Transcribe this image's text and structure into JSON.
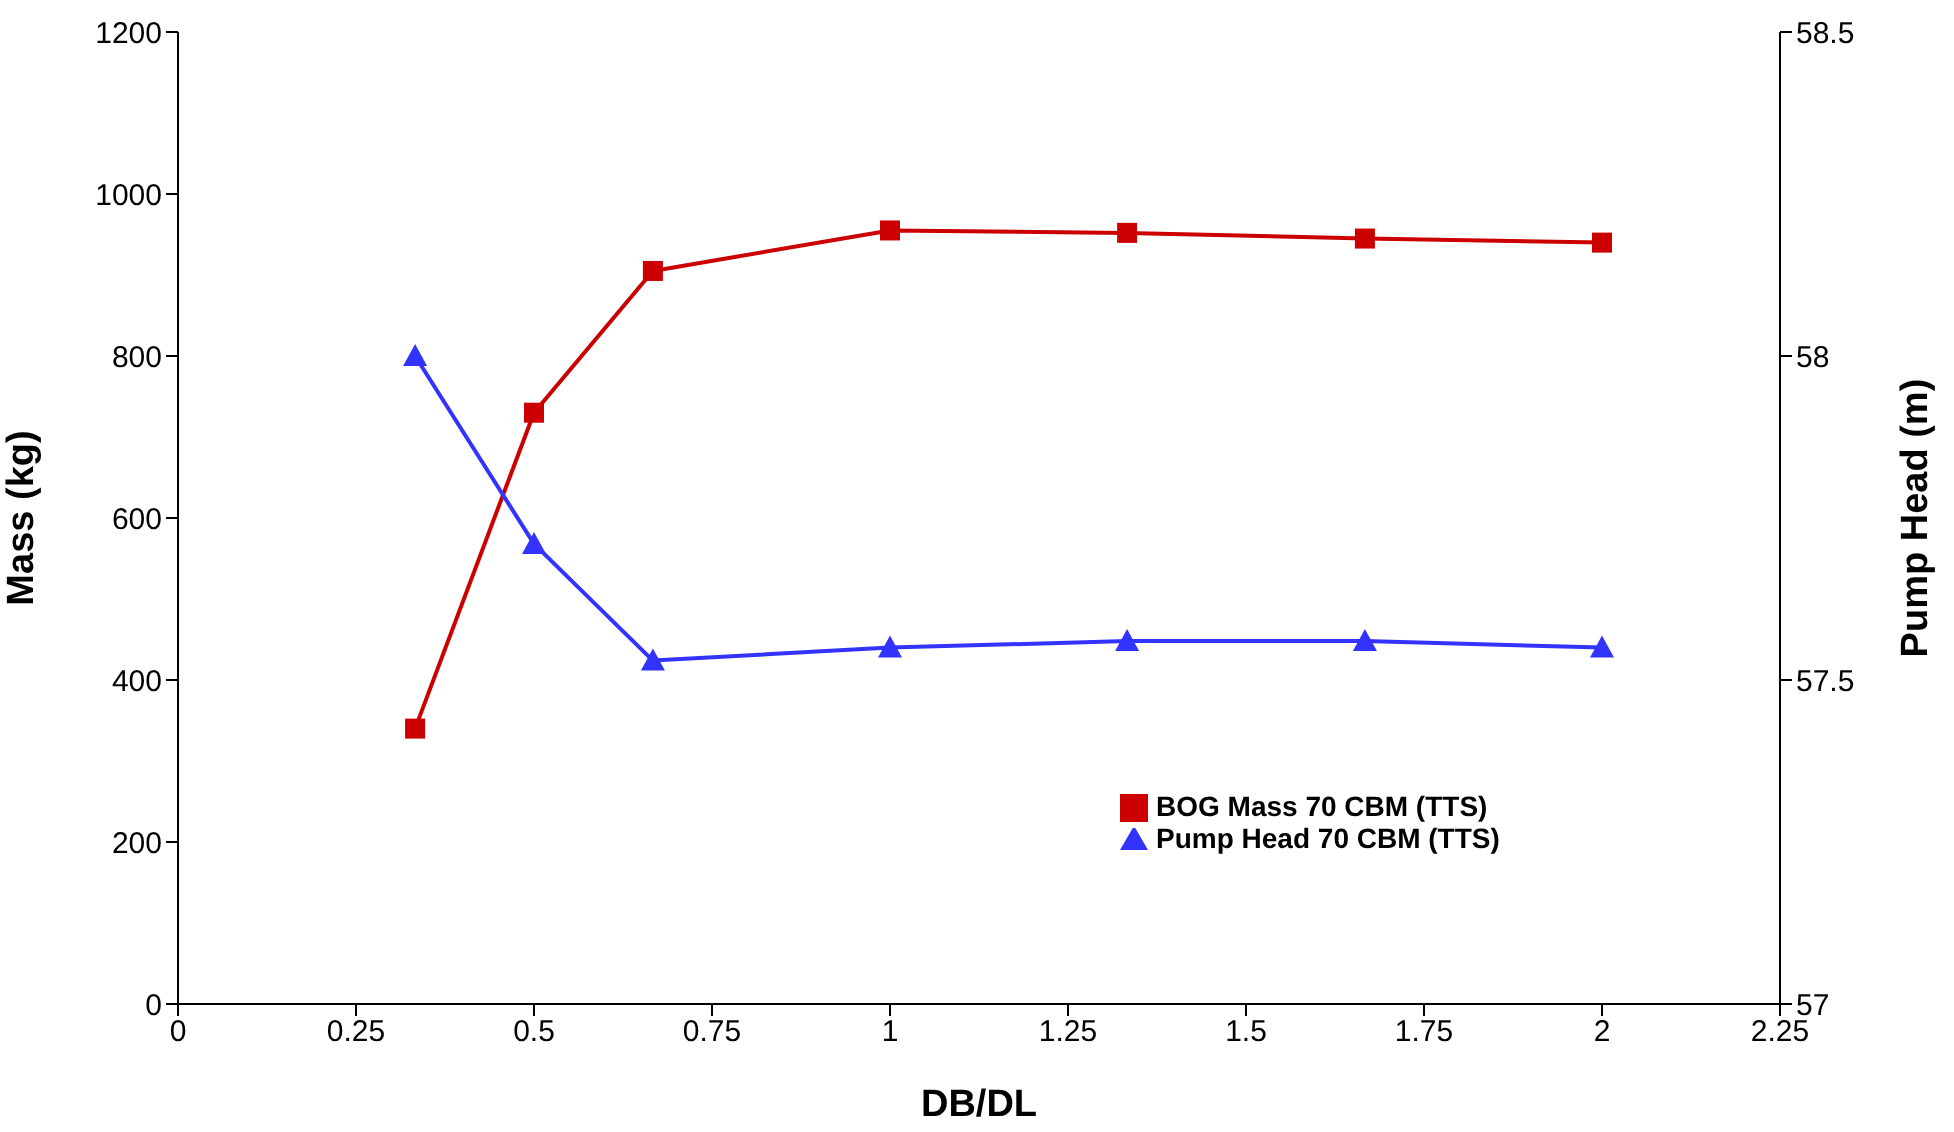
{
  "chart_data": {
    "type": "line",
    "xlabel": "DB/DL",
    "ylabel": "Mass (kg)",
    "y2label": "Pump Head (m)",
    "x": [
      0.333,
      0.5,
      0.667,
      1,
      1.333,
      1.667,
      2
    ],
    "xlim": [
      0,
      2.25
    ],
    "xticks": [
      0,
      0.25,
      0.5,
      0.75,
      1,
      1.25,
      1.5,
      1.75,
      2,
      2.25
    ],
    "ylim": [
      0,
      1200
    ],
    "yticks": [
      0,
      200,
      400,
      600,
      800,
      1000,
      1200
    ],
    "y2lim": [
      57,
      58.5
    ],
    "y2ticks": [
      57,
      57.5,
      58,
      58.5
    ],
    "legend": "bottom right",
    "series": [
      {
        "name": "BOG Mass 70 CBM (TTS)",
        "color": "#cc0000",
        "marker": "square",
        "values": [
          340,
          730,
          905,
          955,
          952,
          945,
          940
        ]
      },
      {
        "name": "Pump Head 70 CBM (TTS)",
        "color": "#3333ff",
        "marker": "triangle",
        "axis": "y2",
        "values": [
          58.0,
          57.71,
          57.53,
          57.55,
          57.56,
          57.56,
          57.55
        ]
      }
    ]
  }
}
